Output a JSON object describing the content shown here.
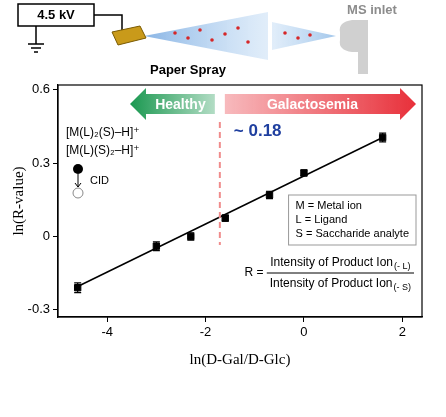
{
  "chart_data": {
    "type": "scatter",
    "x_label": "ln(D-Gal/D-Glc)",
    "y_label": "ln(R-value)",
    "x": [
      -4.6,
      -3.0,
      -2.3,
      -1.6,
      -0.7,
      0.0,
      1.6
    ],
    "values": [
      -0.21,
      -0.04,
      0.0,
      0.075,
      0.17,
      0.26,
      0.405
    ],
    "errors": [
      0.02,
      0.018,
      0.015,
      0.012,
      0.015,
      0.012,
      0.018
    ],
    "color": "#000000",
    "marker": "square",
    "fit": {
      "x": [
        -4.6,
        1.6
      ],
      "values": [
        -0.205,
        0.405
      ]
    },
    "xlim": [
      -5,
      2.4
    ],
    "xticks": [
      -4,
      -2,
      0,
      2
    ],
    "ylim": [
      -0.33,
      0.62
    ],
    "yticks": [
      -0.3,
      0,
      0.3,
      0.6
    ],
    "grid": false,
    "threshold": {
      "x": -1.71,
      "label": "~ 0.18",
      "color": "#f08c8c",
      "label_color": "#1f3f9f"
    },
    "regions": [
      {
        "label": "Healthy",
        "side": "left",
        "color": "#1a9850"
      },
      {
        "label": "Galactosemia",
        "side": "right",
        "color": "#e8303a"
      }
    ],
    "ions": [
      "[M(L)₂(S)–H]⁺",
      "[M(L)(S)₂–H]⁺"
    ],
    "ion_note": "CID",
    "key": [
      "M = Metal ion",
      "L = Ligand",
      "S = Saccharide analyte"
    ],
    "formula": {
      "lhs": "R =",
      "numerator": "Intensity of Product Ion",
      "numerator_sub": "(- L)",
      "denominator": "Intensity of Product Ion",
      "denominator_sub": "(- S)"
    },
    "schematic": {
      "voltage": "4.5 kV",
      "source": "Paper Spray",
      "inlet": "MS inlet"
    }
  }
}
